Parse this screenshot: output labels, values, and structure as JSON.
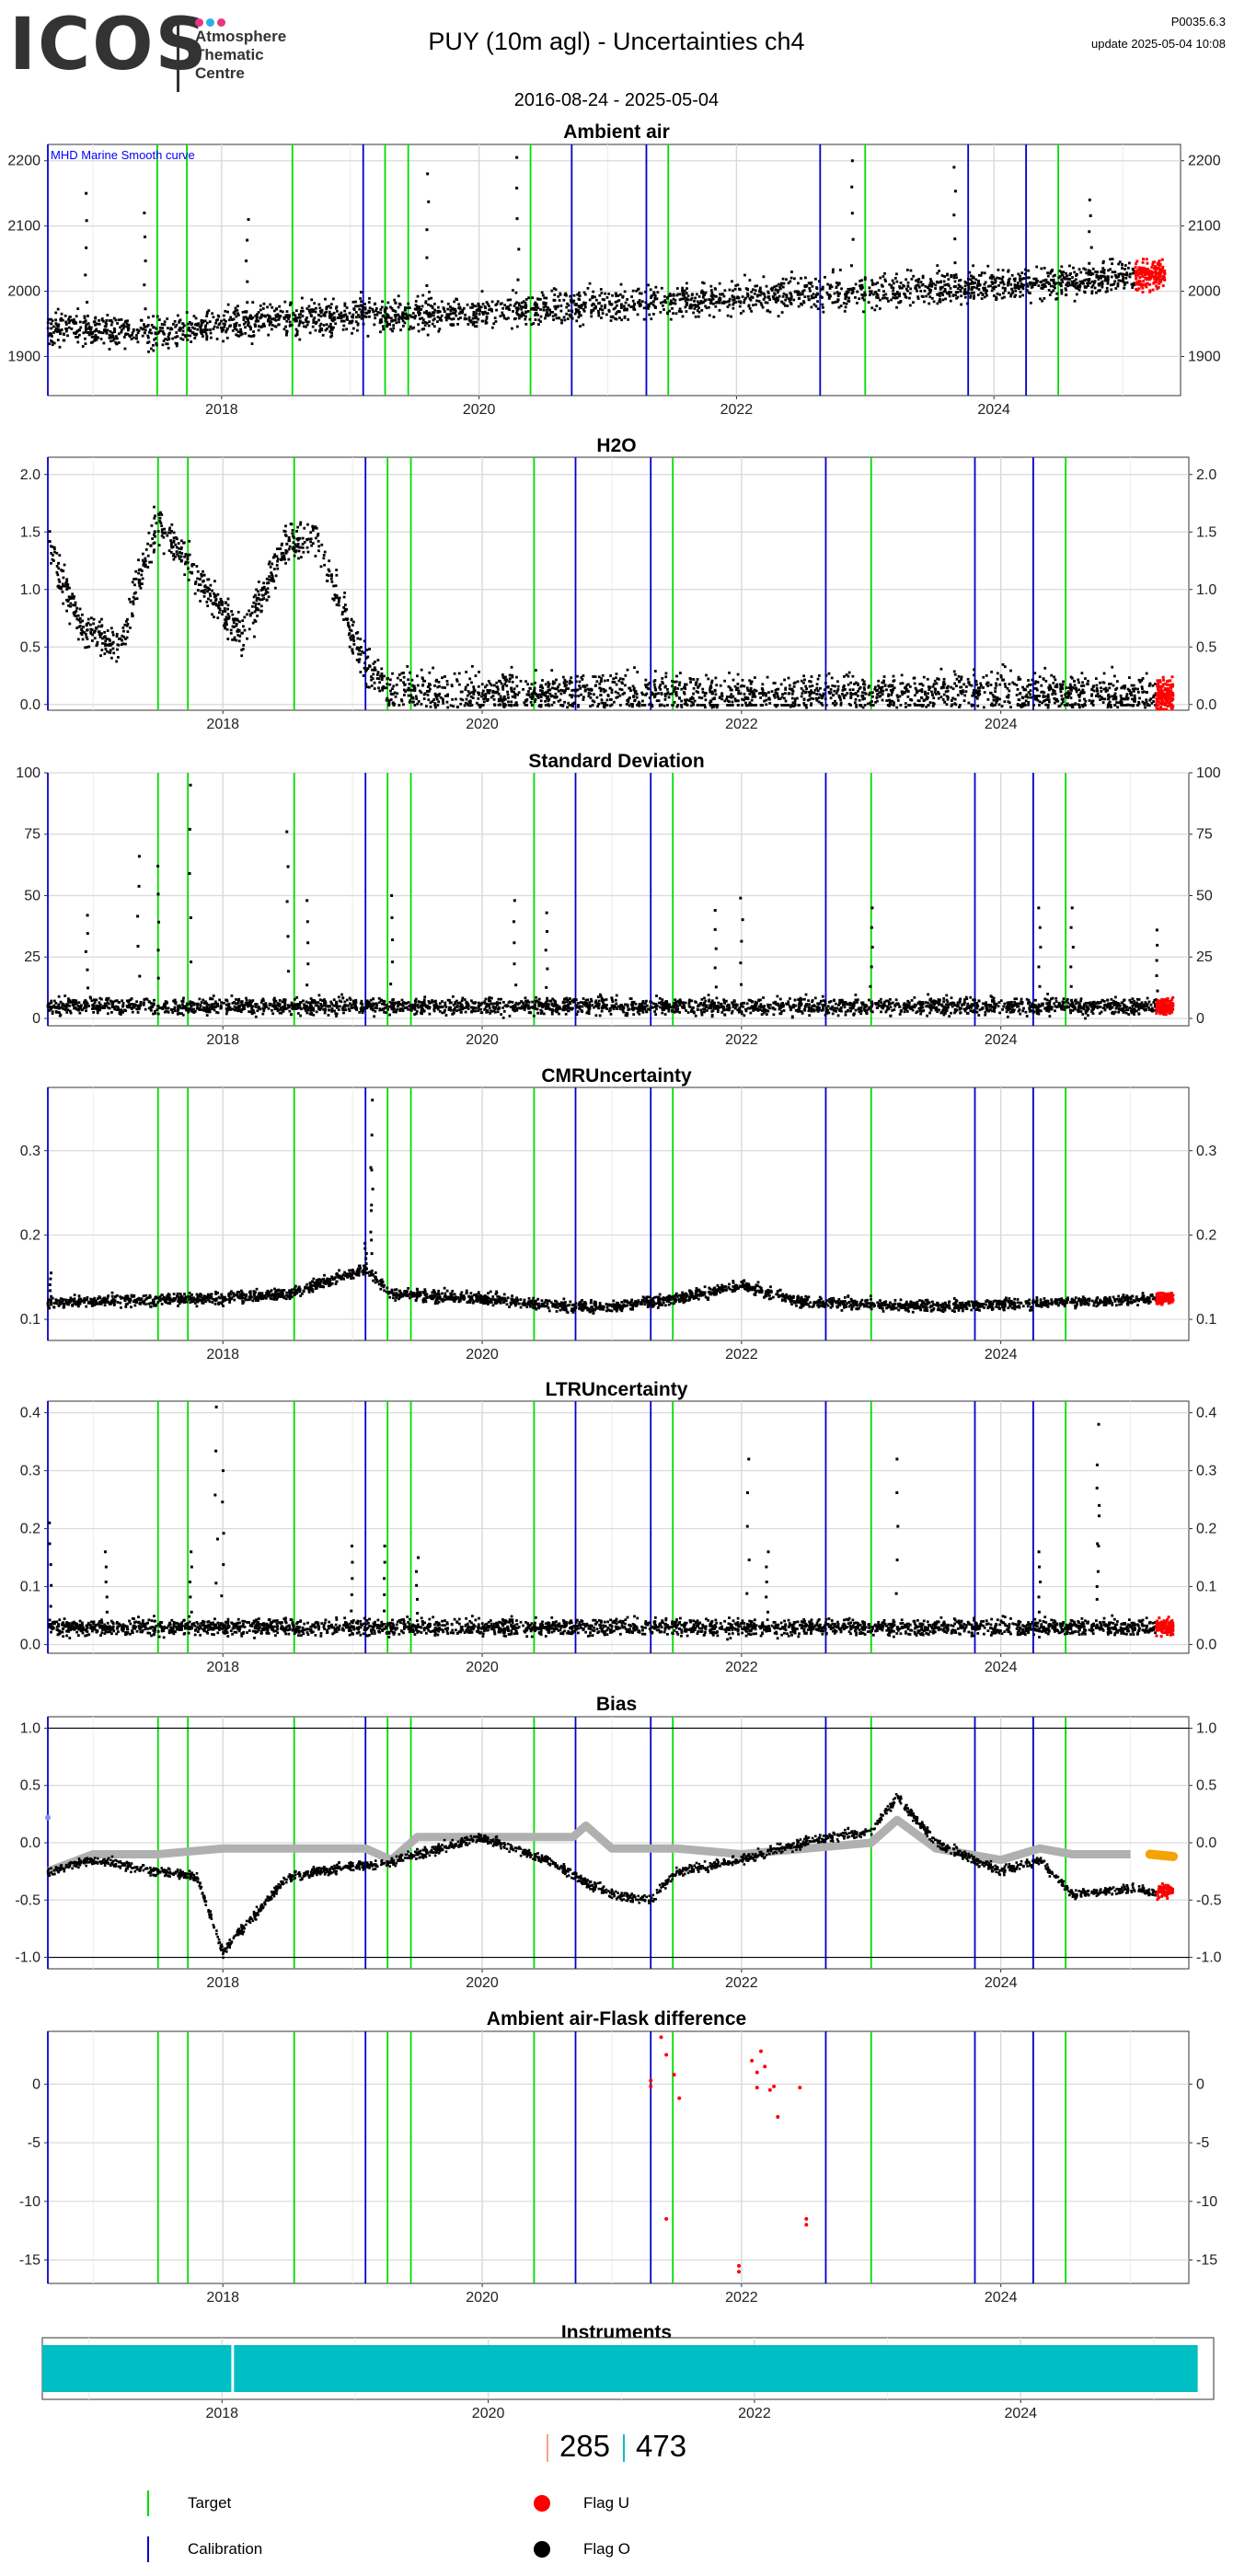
{
  "header": {
    "logo": "ICOS",
    "logo_sub": [
      "Atmosphere",
      "Thematic",
      "Centre"
    ],
    "title": "PUY  (10m agl) - Uncertainties ch4",
    "version": "P0035.6.3",
    "update": "update  2025-05-04 10:08",
    "date_range": "2016-08-24 - 2025-05-04"
  },
  "colors": {
    "target_line": "#00dd00",
    "calibration_line": "#0000cc",
    "flag_u": "#ff0000",
    "flag_o": "#000000",
    "instrument": "#00bfc4",
    "bias_smooth": "#b0b0b0",
    "bias_recent": "#f5a300"
  },
  "chart_data": [
    {
      "type": "scatter",
      "title": "Ambient air",
      "annotation": "MHD Marine Smooth curve",
      "ylim": [
        1840,
        2225
      ],
      "yticks": [
        1900,
        2000,
        2100,
        2200
      ],
      "ytick_labels": [
        "1900",
        "2000",
        "2100",
        "2200"
      ],
      "xticks": [
        2018,
        2020,
        2022,
        2024
      ],
      "xtick_labels": [
        "2018",
        "2020",
        "2022",
        "2024"
      ],
      "trend": [
        [
          2016.65,
          1945
        ],
        [
          2017.5,
          1935
        ],
        [
          2018.5,
          1958
        ],
        [
          2019.5,
          1965
        ],
        [
          2020.5,
          1972
        ],
        [
          2021.5,
          1985
        ],
        [
          2022.5,
          1995
        ],
        [
          2023.5,
          2005
        ],
        [
          2024.5,
          2015
        ],
        [
          2025.25,
          2025
        ]
      ],
      "spread": 45,
      "spikes": [
        [
          2016.95,
          2150
        ],
        [
          2017.4,
          2120
        ],
        [
          2018.2,
          2110
        ],
        [
          2019.6,
          2180
        ],
        [
          2020.3,
          2205
        ],
        [
          2022.9,
          2200
        ],
        [
          2023.7,
          2190
        ],
        [
          2024.75,
          2140
        ]
      ],
      "flagged_end": [
        2025.1,
        2025.33
      ]
    },
    {
      "type": "scatter",
      "title": "H2O",
      "ylim": [
        -0.05,
        2.15
      ],
      "yticks": [
        0.0,
        0.5,
        1.0,
        1.5,
        2.0
      ],
      "ytick_labels": [
        "0.0",
        "0.5",
        "1.0",
        "1.5",
        "2.0"
      ],
      "xticks": [
        2018,
        2020,
        2022,
        2024
      ],
      "xtick_labels": [
        "2018",
        "2020",
        "2022",
        "2024"
      ],
      "trend": [
        [
          2016.65,
          1.4
        ],
        [
          2016.9,
          0.7
        ],
        [
          2017.2,
          0.5
        ],
        [
          2017.5,
          1.6
        ],
        [
          2017.8,
          1.1
        ],
        [
          2018.15,
          0.6
        ],
        [
          2018.5,
          1.4
        ],
        [
          2018.7,
          1.5
        ],
        [
          2019.0,
          0.6
        ],
        [
          2019.1,
          0.35
        ],
        [
          2019.3,
          0.12
        ],
        [
          2020.0,
          0.1
        ],
        [
          2021.0,
          0.1
        ],
        [
          2022.0,
          0.08
        ],
        [
          2023.0,
          0.1
        ],
        [
          2024.0,
          0.12
        ],
        [
          2025.0,
          0.08
        ],
        [
          2025.33,
          0.08
        ]
      ],
      "spread": 0.3,
      "spikes": [],
      "flagged_end": [
        2025.2,
        2025.33
      ]
    },
    {
      "type": "scatter",
      "title": "Standard Deviation",
      "ylim": [
        -3,
        100
      ],
      "yticks": [
        0,
        25,
        50,
        75,
        100
      ],
      "ytick_labels": [
        "0",
        "25",
        "50",
        "75",
        "100"
      ],
      "xticks": [
        2018,
        2020,
        2022,
        2024
      ],
      "xtick_labels": [
        "2018",
        "2020",
        "2022",
        "2024"
      ],
      "trend": [
        [
          2016.65,
          5
        ],
        [
          2025.33,
          5
        ]
      ],
      "spread": 6,
      "spikes": [
        [
          2016.95,
          42
        ],
        [
          2017.35,
          66
        ],
        [
          2017.5,
          62
        ],
        [
          2017.75,
          95
        ],
        [
          2018.5,
          76
        ],
        [
          2018.65,
          48
        ],
        [
          2019.3,
          50
        ],
        [
          2020.25,
          48
        ],
        [
          2020.5,
          43
        ],
        [
          2021.8,
          44
        ],
        [
          2022.0,
          49
        ],
        [
          2023.0,
          45
        ],
        [
          2024.3,
          45
        ],
        [
          2024.55,
          45
        ],
        [
          2025.2,
          36
        ]
      ],
      "flagged_end": [
        2025.2,
        2025.33
      ]
    },
    {
      "type": "scatter",
      "title": "CMRUncertainty",
      "ylim": [
        0.075,
        0.375
      ],
      "yticks": [
        0.1,
        0.2,
        0.3
      ],
      "ytick_labels": [
        "0.1",
        "0.2",
        "0.3"
      ],
      "xticks": [
        2018,
        2020,
        2022,
        2024
      ],
      "xtick_labels": [
        "2018",
        "2020",
        "2022",
        "2024"
      ],
      "trend": [
        [
          2016.65,
          0.12
        ],
        [
          2018.0,
          0.125
        ],
        [
          2018.5,
          0.13
        ],
        [
          2019.1,
          0.16
        ],
        [
          2019.3,
          0.13
        ],
        [
          2020.0,
          0.125
        ],
        [
          2020.7,
          0.115
        ],
        [
          2021.0,
          0.115
        ],
        [
          2021.5,
          0.125
        ],
        [
          2022.0,
          0.14
        ],
        [
          2022.5,
          0.12
        ],
        [
          2023.5,
          0.115
        ],
        [
          2024.5,
          0.12
        ],
        [
          2025.33,
          0.125
        ]
      ],
      "spread": 0.012,
      "spikes": [
        [
          2016.67,
          0.155
        ],
        [
          2019.15,
          0.36
        ],
        [
          2019.15,
          0.28
        ],
        [
          2019.1,
          0.19
        ]
      ],
      "flagged_end": [
        2025.2,
        2025.33
      ]
    },
    {
      "type": "scatter",
      "title": "LTRUncertainty",
      "ylim": [
        -0.015,
        0.42
      ],
      "yticks": [
        0.0,
        0.1,
        0.2,
        0.3,
        0.4
      ],
      "ytick_labels": [
        "0.0",
        "0.1",
        "0.2",
        "0.3",
        "0.4"
      ],
      "xticks": [
        2018,
        2020,
        2022,
        2024
      ],
      "xtick_labels": [
        "2018",
        "2020",
        "2022",
        "2024"
      ],
      "trend": [
        [
          2016.65,
          0.03
        ],
        [
          2025.33,
          0.03
        ]
      ],
      "spread": 0.025,
      "spikes": [
        [
          2016.67,
          0.21
        ],
        [
          2017.1,
          0.16
        ],
        [
          2017.75,
          0.16
        ],
        [
          2017.95,
          0.41
        ],
        [
          2018.0,
          0.3
        ],
        [
          2019.0,
          0.17
        ],
        [
          2019.25,
          0.17
        ],
        [
          2019.5,
          0.15
        ],
        [
          2022.05,
          0.32
        ],
        [
          2022.2,
          0.16
        ],
        [
          2023.2,
          0.32
        ],
        [
          2024.3,
          0.16
        ],
        [
          2024.75,
          0.38
        ],
        [
          2024.75,
          0.27
        ]
      ],
      "flagged_end": [
        2025.2,
        2025.33
      ]
    },
    {
      "type": "line",
      "title": "Bias",
      "ylim": [
        -1.1,
        1.1
      ],
      "yticks": [
        -1.0,
        -0.5,
        0.0,
        0.5,
        1.0
      ],
      "ytick_labels": [
        "-1.0",
        "-0.5",
        "0.0",
        "0.5",
        "1.0"
      ],
      "xticks": [
        2018,
        2020,
        2022,
        2024
      ],
      "xtick_labels": [
        "2018",
        "2020",
        "2022",
        "2024"
      ],
      "hlines": [
        -1.0,
        1.0
      ],
      "smooth_series": [
        [
          2016.65,
          -0.25
        ],
        [
          2017.0,
          -0.1
        ],
        [
          2017.5,
          -0.1
        ],
        [
          2018.0,
          -0.05
        ],
        [
          2018.5,
          -0.05
        ],
        [
          2019.1,
          -0.05
        ],
        [
          2019.3,
          -0.15
        ],
        [
          2019.5,
          0.05
        ],
        [
          2020.0,
          0.05
        ],
        [
          2020.7,
          0.05
        ],
        [
          2020.8,
          0.15
        ],
        [
          2021.0,
          -0.05
        ],
        [
          2021.5,
          -0.05
        ],
        [
          2022.0,
          -0.1
        ],
        [
          2022.5,
          -0.05
        ],
        [
          2023.0,
          0.0
        ],
        [
          2023.2,
          0.2
        ],
        [
          2023.5,
          -0.05
        ],
        [
          2024.0,
          -0.15
        ],
        [
          2024.3,
          -0.05
        ],
        [
          2024.55,
          -0.1
        ],
        [
          2025.0,
          -0.1
        ]
      ],
      "points": [
        [
          2016.65,
          -0.25
        ],
        [
          2017.0,
          -0.15
        ],
        [
          2017.5,
          -0.25
        ],
        [
          2017.8,
          -0.3
        ],
        [
          2018.0,
          -0.95
        ],
        [
          2018.5,
          -0.3
        ],
        [
          2019.0,
          -0.2
        ],
        [
          2019.2,
          -0.2
        ],
        [
          2019.5,
          -0.1
        ],
        [
          2020.0,
          0.05
        ],
        [
          2020.5,
          -0.15
        ],
        [
          2020.8,
          -0.35
        ],
        [
          2021.0,
          -0.45
        ],
        [
          2021.3,
          -0.5
        ],
        [
          2021.5,
          -0.25
        ],
        [
          2022.0,
          -0.15
        ],
        [
          2022.3,
          -0.05
        ],
        [
          2022.7,
          0.05
        ],
        [
          2023.0,
          0.1
        ],
        [
          2023.2,
          0.4
        ],
        [
          2023.5,
          0.0
        ],
        [
          2024.0,
          -0.25
        ],
        [
          2024.3,
          -0.15
        ],
        [
          2024.55,
          -0.45
        ],
        [
          2025.0,
          -0.4
        ],
        [
          2025.25,
          -0.45
        ]
      ],
      "recent_orange": [
        2025.15,
        2025.33
      ],
      "flagged_end": [
        2025.2,
        2025.33
      ]
    },
    {
      "type": "scatter",
      "title": "Ambient air-Flask difference",
      "ylim": [
        -17,
        4.5
      ],
      "yticks": [
        -15,
        -10,
        -5,
        0
      ],
      "ytick_labels": [
        "-15",
        "-10",
        "-5",
        "0"
      ],
      "xticks": [
        2018,
        2020,
        2022,
        2024
      ],
      "xtick_labels": [
        "2018",
        "2020",
        "2022",
        "2024"
      ],
      "flask_points": [
        [
          2021.3,
          0.3
        ],
        [
          2021.3,
          -0.2
        ],
        [
          2021.38,
          4.0
        ],
        [
          2021.42,
          2.5
        ],
        [
          2021.48,
          0.8
        ],
        [
          2021.52,
          -1.2
        ],
        [
          2021.42,
          -11.5
        ],
        [
          2021.98,
          -15.5
        ],
        [
          2021.98,
          -16.0
        ],
        [
          2022.08,
          2.0
        ],
        [
          2022.12,
          1.0
        ],
        [
          2022.15,
          2.8
        ],
        [
          2022.12,
          -0.3
        ],
        [
          2022.22,
          -0.5
        ],
        [
          2022.25,
          -0.2
        ],
        [
          2022.28,
          -2.8
        ],
        [
          2022.45,
          -0.3
        ],
        [
          2022.5,
          -11.5
        ],
        [
          2022.5,
          -12.0
        ],
        [
          2022.18,
          1.5
        ]
      ]
    },
    {
      "type": "bar",
      "title": "Instruments",
      "xticks": [
        2018,
        2020,
        2022,
        2024
      ],
      "xtick_labels": [
        "2018",
        "2020",
        "2022",
        "2024"
      ],
      "instrument_periods": [
        [
          2016.65,
          2018.07
        ],
        [
          2018.09,
          2025.33
        ]
      ]
    }
  ],
  "target_dates": [
    2017.5,
    2017.73,
    2018.55,
    2019.27,
    2019.45,
    2020.4,
    2021.47,
    2023.0,
    2024.5
  ],
  "calibration_dates": [
    2016.65,
    2019.1,
    2020.72,
    2021.3,
    2022.65,
    2023.8,
    2024.25
  ],
  "counts": {
    "left": "285",
    "right": "473"
  },
  "legend": {
    "target": "Target",
    "calibration": "Calibration",
    "flag_u": "Flag U",
    "flag_o": "Flag O"
  }
}
